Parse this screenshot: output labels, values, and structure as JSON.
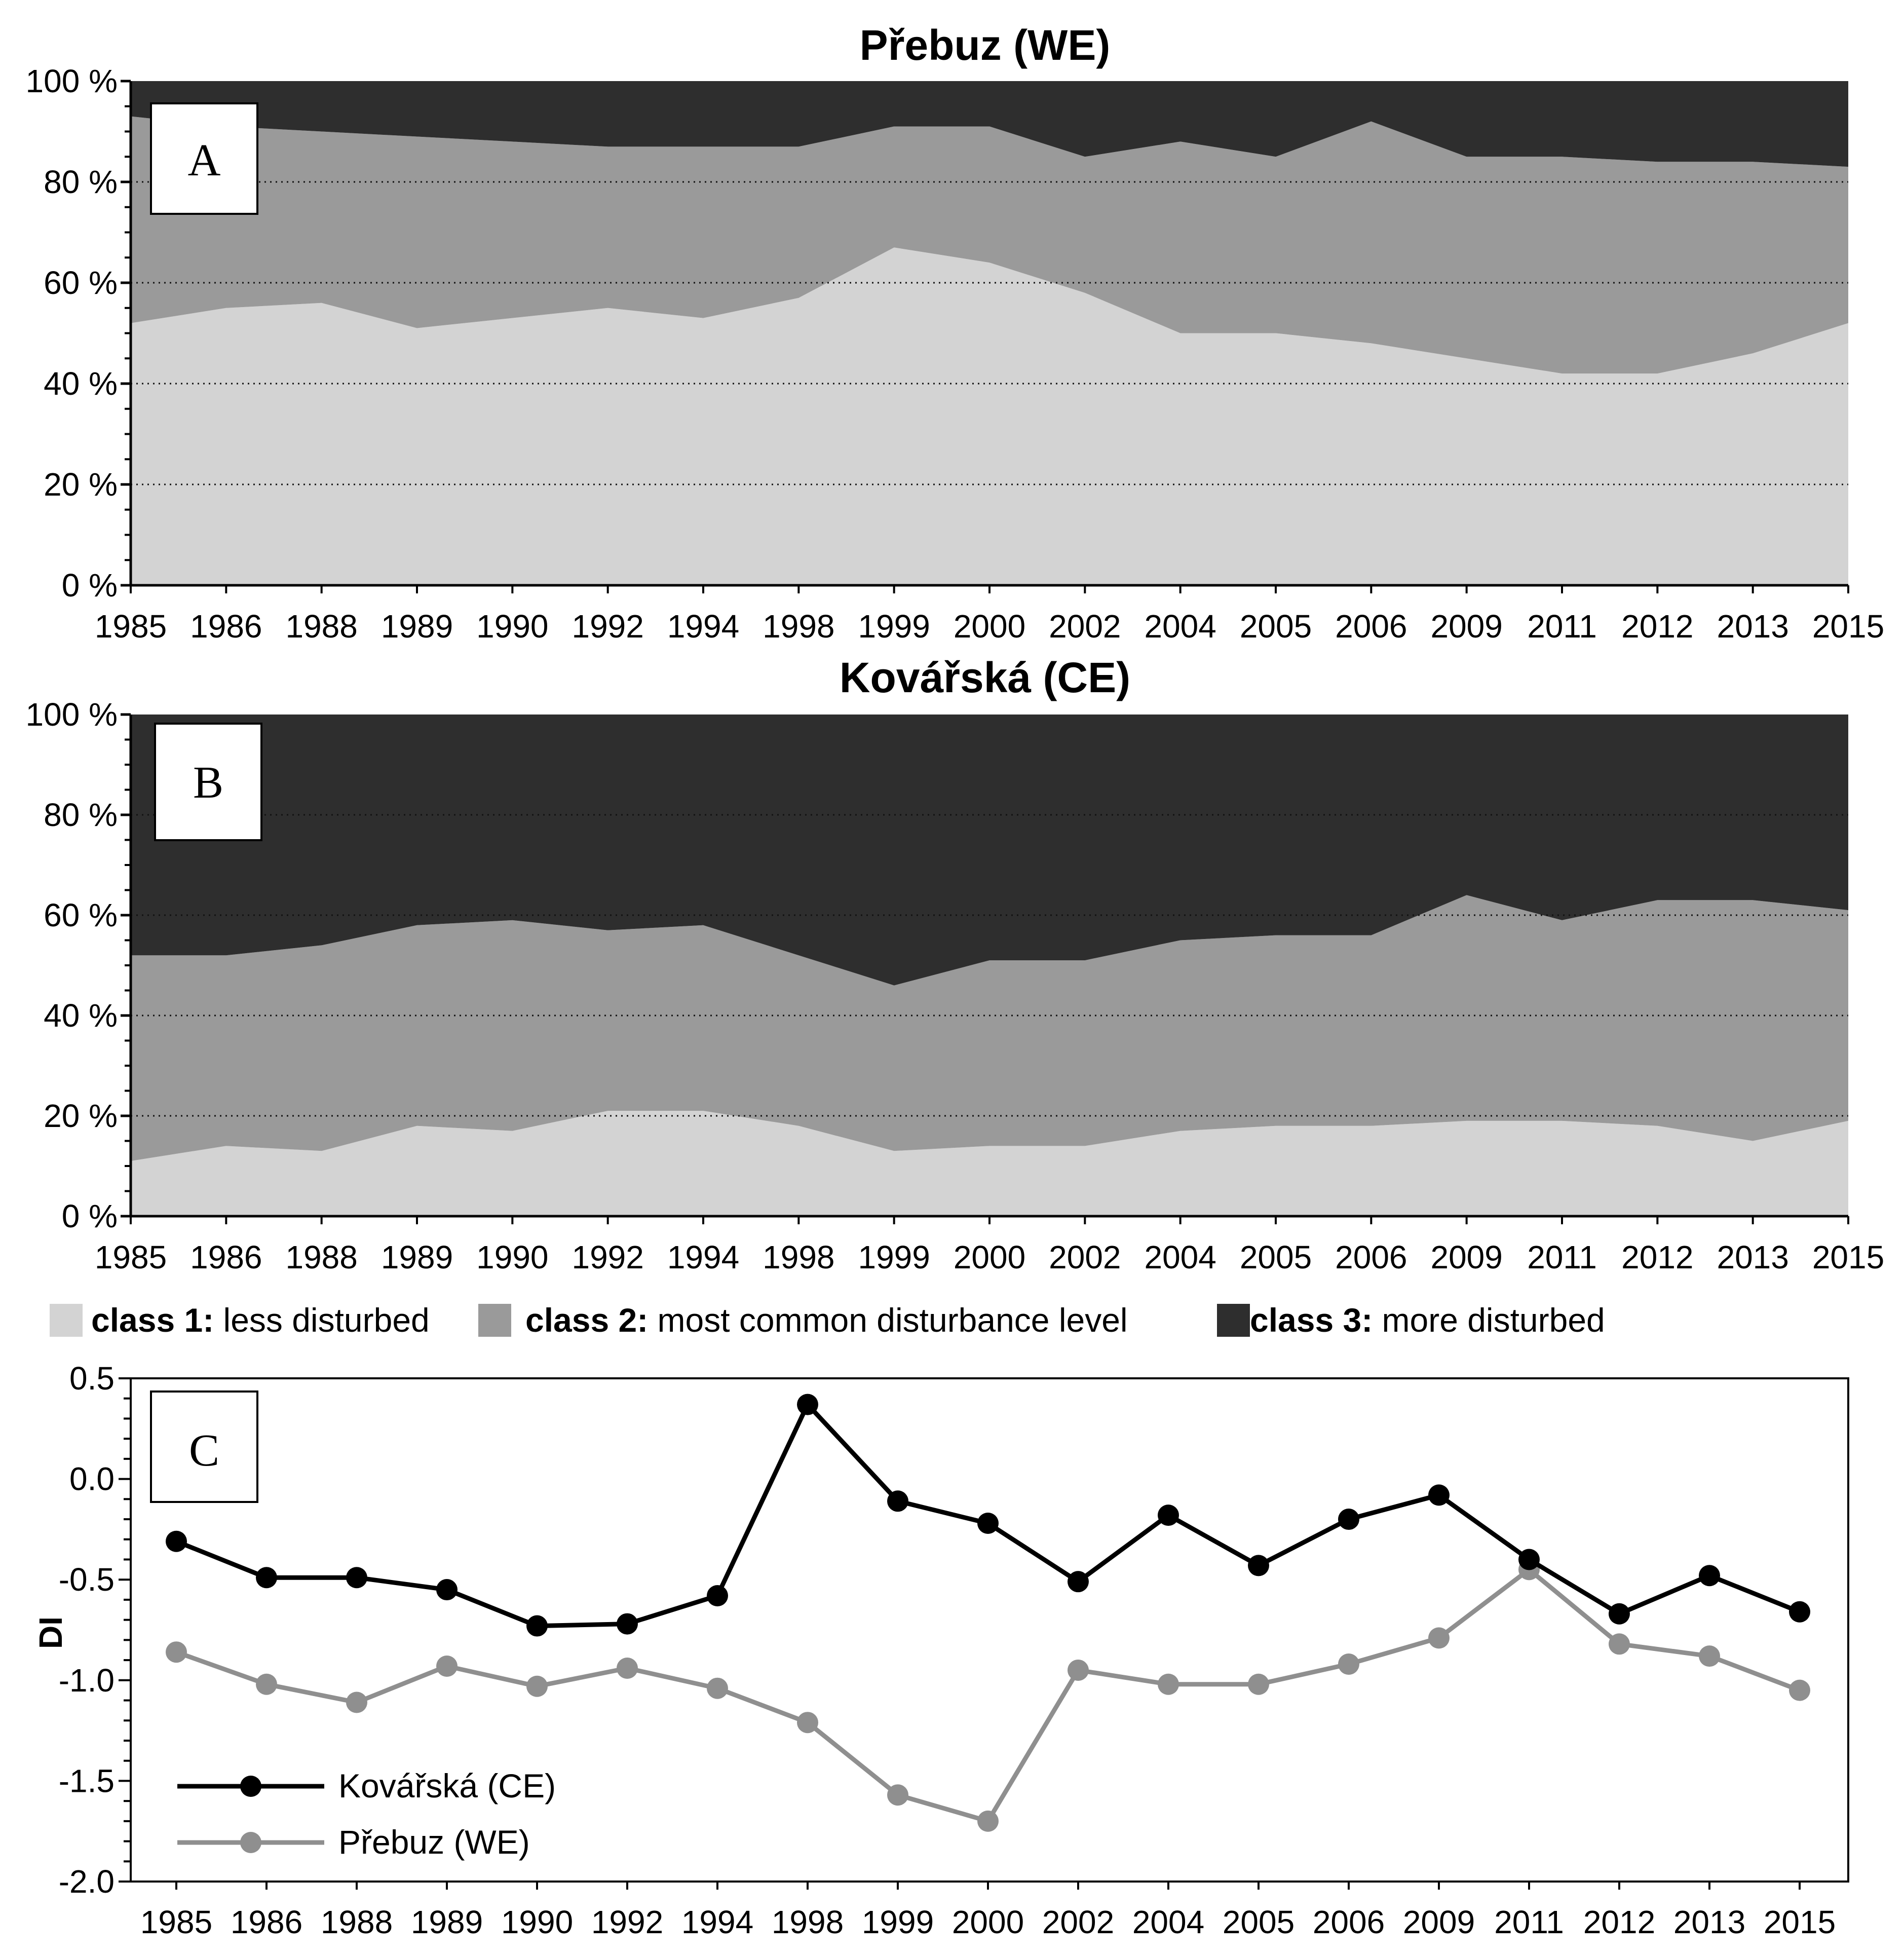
{
  "colors": {
    "class1": "#d3d3d3",
    "class2": "#9a9a9a",
    "class3": "#2e2e2e",
    "kovarska_line": "#000000",
    "prebuz_line": "#8f8f8f"
  },
  "chart_data": [
    {
      "type": "area",
      "panel_label": "A",
      "title": "Přebuz (WE)",
      "categories": [
        "1985",
        "1986",
        "1988",
        "1989",
        "1990",
        "1992",
        "1994",
        "1998",
        "1999",
        "2000",
        "2002",
        "2004",
        "2005",
        "2006",
        "2009",
        "2011",
        "2012",
        "2013",
        "2015"
      ],
      "series": [
        {
          "name": "class 1: less disturbed",
          "values": [
            52,
            55,
            56,
            51,
            53,
            55,
            53,
            57,
            67,
            64,
            58,
            50,
            50,
            48,
            45,
            42,
            42,
            46,
            52
          ]
        },
        {
          "name": "class 2: most common disturbance level",
          "values": [
            41,
            36,
            34,
            38,
            35,
            32,
            34,
            30,
            24,
            27,
            27,
            38,
            35,
            44,
            40,
            43,
            42,
            38,
            31
          ]
        },
        {
          "name": "class 3: more disturbed",
          "values": [
            7,
            9,
            10,
            11,
            12,
            13,
            13,
            13,
            9,
            9,
            15,
            12,
            15,
            8,
            15,
            15,
            16,
            16,
            17
          ]
        }
      ],
      "y_ticks": [
        "0 %",
        "20 %",
        "40 %",
        "60 %",
        "80 %",
        "100 %"
      ],
      "ylim": [
        0,
        100
      ],
      "stacked": true,
      "grid": "dotted horizontal at 20% intervals"
    },
    {
      "type": "area",
      "panel_label": "B",
      "title": "Kovářská (CE)",
      "categories": [
        "1985",
        "1986",
        "1988",
        "1989",
        "1990",
        "1992",
        "1994",
        "1998",
        "1999",
        "2000",
        "2002",
        "2004",
        "2005",
        "2006",
        "2009",
        "2011",
        "2012",
        "2013",
        "2015"
      ],
      "series": [
        {
          "name": "class 1: less disturbed",
          "values": [
            11,
            14,
            13,
            18,
            17,
            21,
            21,
            18,
            13,
            14,
            14,
            17,
            18,
            18,
            19,
            19,
            18,
            15,
            19
          ]
        },
        {
          "name": "class 2: most common disturbance level",
          "values": [
            41,
            38,
            41,
            40,
            42,
            36,
            37,
            34,
            33,
            37,
            37,
            38,
            38,
            38,
            45,
            40,
            45,
            48,
            42
          ]
        },
        {
          "name": "class 3: more disturbed",
          "values": [
            48,
            48,
            46,
            42,
            41,
            43,
            42,
            48,
            54,
            49,
            49,
            45,
            44,
            44,
            36,
            41,
            37,
            37,
            39
          ]
        }
      ],
      "y_ticks": [
        "0 %",
        "20 %",
        "40 %",
        "60 %",
        "80 %",
        "100 %"
      ],
      "ylim": [
        0,
        100
      ],
      "stacked": true,
      "grid": "dotted horizontal at 20% intervals"
    },
    {
      "type": "line",
      "panel_label": "C",
      "ylabel": "DI",
      "categories": [
        "1985",
        "1986",
        "1988",
        "1989",
        "1990",
        "1992",
        "1994",
        "1998",
        "1999",
        "2000",
        "2002",
        "2004",
        "2005",
        "2006",
        "2009",
        "2011",
        "2012",
        "2013",
        "2015"
      ],
      "series": [
        {
          "name": "Kovářská (CE)",
          "values": [
            -0.31,
            -0.49,
            -0.49,
            -0.55,
            -0.73,
            -0.72,
            -0.58,
            0.37,
            -0.11,
            -0.22,
            -0.51,
            -0.18,
            -0.43,
            -0.2,
            -0.08,
            -0.4,
            -0.67,
            -0.48,
            -0.66
          ]
        },
        {
          "name": "Přebuz (WE)",
          "values": [
            -0.86,
            -1.02,
            -1.11,
            -0.93,
            -1.03,
            -0.94,
            -1.04,
            -1.21,
            -1.57,
            -1.7,
            -0.95,
            -1.02,
            -1.02,
            -0.92,
            -0.79,
            -0.45,
            -0.82,
            -0.88,
            -1.05
          ]
        }
      ],
      "y_ticks": [
        "-2.0",
        "-1.5",
        "-1.0",
        "-0.5",
        "0.0",
        "0.5"
      ],
      "ylim": [
        -2.0,
        0.5
      ],
      "legend_position": "bottom-left"
    }
  ],
  "legend": {
    "items": [
      {
        "bold": "class 1:",
        "text": " less disturbed"
      },
      {
        "bold": "class 2:",
        "text": " most common disturbance level"
      },
      {
        "bold": "class 3:",
        "text": " more disturbed"
      }
    ]
  }
}
